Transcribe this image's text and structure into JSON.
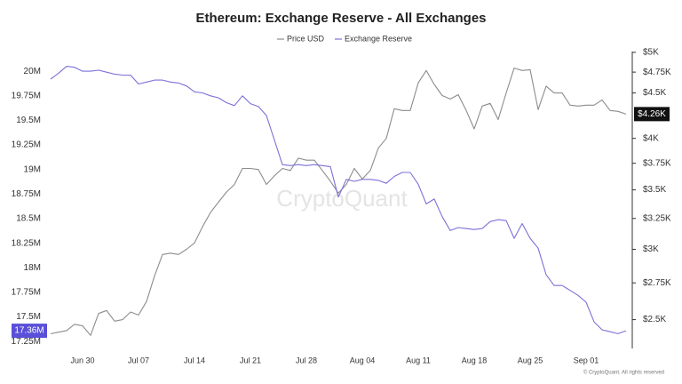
{
  "chart_data": {
    "type": "line",
    "title": "Ethereum: Exchange Reserve - All Exchanges",
    "watermark": "CryptoQuant",
    "credit": "© CryptoQuant. All rights reserved",
    "categories": [
      null,
      null,
      null,
      null,
      "Jun 30",
      null,
      null,
      null,
      null,
      null,
      null,
      "Jul 07",
      null,
      null,
      null,
      null,
      null,
      null,
      "Jul 14",
      null,
      null,
      null,
      null,
      null,
      null,
      "Jul 21",
      null,
      null,
      null,
      null,
      null,
      null,
      "Jul 28",
      null,
      null,
      null,
      null,
      null,
      null,
      "Aug 04",
      null,
      null,
      null,
      null,
      null,
      null,
      "Aug 11",
      null,
      null,
      null,
      null,
      null,
      null,
      "Aug 18",
      null,
      null,
      null,
      null,
      null,
      null,
      "Aug 25",
      null,
      null,
      null,
      null,
      null,
      null,
      "Sep 01",
      null,
      null,
      null,
      null,
      null
    ],
    "series": [
      {
        "name": "Price USD",
        "color": "#8c8c8c",
        "axis": "y2",
        "values": [
          2410,
          2420,
          2430,
          2470,
          2460,
          2400,
          2540,
          2560,
          2490,
          2500,
          2550,
          2530,
          2620,
          2800,
          2960,
          2970,
          2960,
          3000,
          3050,
          3180,
          3300,
          3390,
          3480,
          3550,
          3700,
          3700,
          3690,
          3550,
          3630,
          3700,
          3680,
          3800,
          3780,
          3780,
          3680,
          3580,
          3470,
          3550,
          3700,
          3600,
          3680,
          3900,
          4000,
          4320,
          4300,
          4300,
          4620,
          4770,
          4600,
          4470,
          4430,
          4480,
          4300,
          4100,
          4350,
          4380,
          4200,
          4500,
          4800,
          4770,
          4780,
          4310,
          4580,
          4500,
          4500,
          4360,
          4350,
          4360,
          4360,
          4420,
          4300,
          4290,
          4260
        ],
        "value_labels": [
          null,
          null,
          null,
          null,
          null,
          null,
          null,
          null,
          null,
          null,
          null,
          null,
          null,
          null,
          null,
          null,
          null,
          null,
          null,
          null,
          null,
          null,
          null,
          null,
          null,
          null,
          null,
          null,
          null,
          null,
          null,
          null,
          null,
          null,
          null,
          null,
          null,
          null,
          null,
          null,
          null,
          null,
          null,
          null,
          null,
          null,
          null,
          null,
          null,
          null,
          null,
          null,
          null,
          null,
          null,
          null,
          null,
          null,
          null,
          null,
          null,
          null,
          null,
          null,
          null,
          null,
          null,
          null,
          null,
          null,
          null,
          null,
          "$4.26K"
        ],
        "badge_color": "#111111"
      },
      {
        "name": "Exchange Reserve",
        "color": "#7b70d8",
        "values": [
          19.92,
          19.98,
          20.05,
          20.04,
          20.0,
          20.0,
          20.01,
          19.99,
          19.97,
          19.96,
          19.96,
          19.87,
          19.89,
          19.91,
          19.91,
          19.89,
          19.88,
          19.85,
          19.79,
          19.78,
          19.75,
          19.73,
          19.68,
          19.65,
          19.75,
          19.67,
          19.64,
          19.55,
          19.3,
          19.05,
          19.04,
          19.05,
          19.04,
          19.05,
          19.04,
          19.03,
          18.72,
          18.9,
          18.88,
          18.9,
          18.9,
          18.89,
          18.86,
          18.93,
          18.97,
          18.97,
          18.85,
          18.65,
          18.7,
          18.52,
          18.38,
          18.41,
          18.4,
          18.39,
          18.4,
          18.47,
          18.49,
          18.48,
          18.3,
          18.45,
          18.3,
          18.2,
          17.93,
          17.82,
          17.82,
          17.77,
          17.72,
          17.65,
          17.45,
          17.37,
          17.35,
          17.33,
          17.36
        ],
        "value_labels": [
          null,
          null,
          null,
          null,
          null,
          null,
          null,
          null,
          null,
          null,
          null,
          null,
          null,
          null,
          null,
          null,
          null,
          null,
          null,
          null,
          null,
          null,
          null,
          null,
          null,
          null,
          null,
          null,
          null,
          null,
          null,
          null,
          null,
          null,
          null,
          null,
          null,
          null,
          null,
          null,
          null,
          null,
          null,
          null,
          null,
          null,
          null,
          null,
          null,
          null,
          null,
          null,
          null,
          null,
          null,
          null,
          null,
          null,
          null,
          null,
          null,
          null,
          null,
          null,
          null,
          null,
          null,
          null,
          null,
          null,
          null,
          null,
          "17.36M"
        ],
        "badge_color": "#5a4fd8"
      }
    ],
    "ylim": [
      17.18,
      20.2
    ],
    "yticks": [
      {
        "value": 17.25,
        "label": "17.25M"
      },
      {
        "value": 17.5,
        "label": "17.5M"
      },
      {
        "value": 17.75,
        "label": "17.75M"
      },
      {
        "value": 18,
        "label": "18M"
      },
      {
        "value": 18.25,
        "label": "18.25M"
      },
      {
        "value": 18.5,
        "label": "18.5M"
      },
      {
        "value": 18.75,
        "label": "18.75M"
      },
      {
        "value": 19,
        "label": "19M"
      },
      {
        "value": 19.25,
        "label": "19.25M"
      },
      {
        "value": 19.5,
        "label": "19.5M"
      },
      {
        "value": 19.75,
        "label": "19.75M"
      },
      {
        "value": 20,
        "label": "20M"
      }
    ],
    "y2lim": [
      2320,
      5010
    ],
    "y2log": true,
    "y2ticks": [
      {
        "value": 2500,
        "label": "$2.5K"
      },
      {
        "value": 2750,
        "label": "$2.75K"
      },
      {
        "value": 3000,
        "label": "$3K"
      },
      {
        "value": 3250,
        "label": "$3.25K"
      },
      {
        "value": 3500,
        "label": "$3.5K"
      },
      {
        "value": 3750,
        "label": "$3.75K"
      },
      {
        "value": 4000,
        "label": "$4K"
      },
      {
        "value": 4500,
        "label": "$4.5K"
      },
      {
        "value": 4750,
        "label": "$4.75K"
      },
      {
        "value": 5000,
        "label": "$5K"
      }
    ],
    "grid": false
  }
}
